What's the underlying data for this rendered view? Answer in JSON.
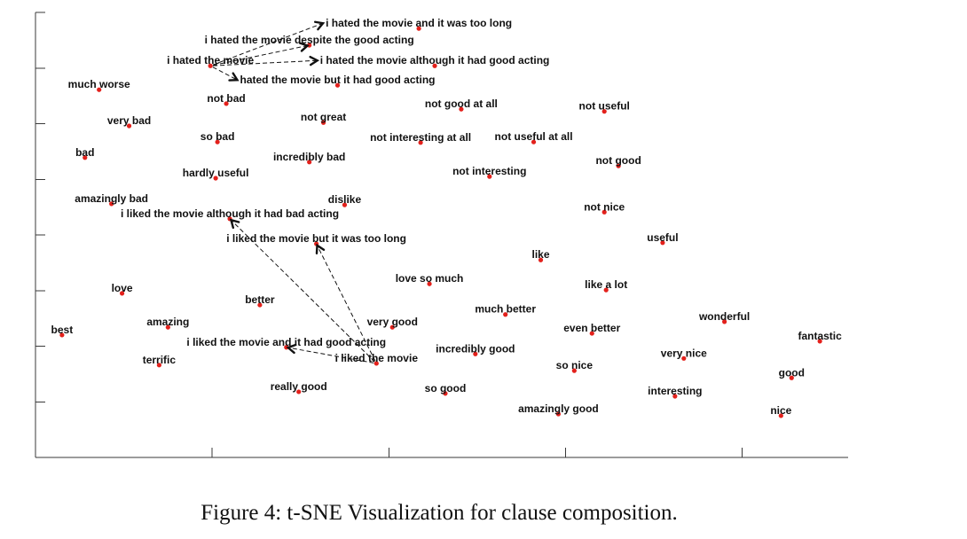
{
  "figure": {
    "caption": "Figure 4: t-SNE Visualization for clause composition."
  },
  "chart_data": {
    "type": "scatter",
    "xlim": [
      0,
      4.6
    ],
    "ylim": [
      0,
      8
    ],
    "xticks": [
      1,
      2,
      3,
      4
    ],
    "yticks": [
      1,
      2,
      3,
      4,
      5,
      6,
      7,
      8
    ],
    "grid": false,
    "point_color": "#e3211c",
    "label_color": "#111111",
    "arrow_color": "#111111",
    "points": [
      {
        "label": "i hated the movie and it was too long",
        "x": 2.17,
        "y": 7.71
      },
      {
        "label": "i hated the movie despite the good acting",
        "x": 1.55,
        "y": 7.41
      },
      {
        "label": "i hated the movie",
        "x": 0.99,
        "y": 7.04
      },
      {
        "label": "i hated the movie although it had good acting",
        "x": 2.26,
        "y": 7.04
      },
      {
        "label": "hated the movie but it had good acting",
        "x": 1.71,
        "y": 6.69
      },
      {
        "label": "much worse",
        "x": 0.36,
        "y": 6.61
      },
      {
        "label": "not bad",
        "x": 1.08,
        "y": 6.36
      },
      {
        "label": "not great",
        "x": 1.63,
        "y": 6.02
      },
      {
        "label": "very bad",
        "x": 0.53,
        "y": 5.96
      },
      {
        "label": "so bad",
        "x": 1.03,
        "y": 5.67
      },
      {
        "label": "not good at all",
        "x": 2.41,
        "y": 6.26
      },
      {
        "label": "not useful",
        "x": 3.22,
        "y": 6.22
      },
      {
        "label": "not interesting at all",
        "x": 2.18,
        "y": 5.66
      },
      {
        "label": "not useful at all",
        "x": 2.82,
        "y": 5.67
      },
      {
        "label": "bad",
        "x": 0.28,
        "y": 5.39
      },
      {
        "label": "incredibly bad",
        "x": 1.55,
        "y": 5.31
      },
      {
        "label": "not good",
        "x": 3.3,
        "y": 5.24
      },
      {
        "label": "hardly useful",
        "x": 1.02,
        "y": 5.02
      },
      {
        "label": "not interesting",
        "x": 2.57,
        "y": 5.05
      },
      {
        "label": "amazingly bad",
        "x": 0.43,
        "y": 4.56
      },
      {
        "label": "dislike",
        "x": 1.75,
        "y": 4.54
      },
      {
        "label": "i liked the movie although it had bad acting",
        "x": 1.1,
        "y": 4.29
      },
      {
        "label": "not nice",
        "x": 3.22,
        "y": 4.41
      },
      {
        "label": "i liked the movie but it was too long",
        "x": 1.59,
        "y": 3.84
      },
      {
        "label": "useful",
        "x": 3.55,
        "y": 3.86
      },
      {
        "label": "like",
        "x": 2.86,
        "y": 3.55
      },
      {
        "label": "love so much",
        "x": 2.23,
        "y": 3.12
      },
      {
        "label": "like a lot",
        "x": 3.23,
        "y": 3.01
      },
      {
        "label": "love",
        "x": 0.49,
        "y": 2.95
      },
      {
        "label": "better",
        "x": 1.27,
        "y": 2.74
      },
      {
        "label": "much better",
        "x": 2.66,
        "y": 2.57
      },
      {
        "label": "very good",
        "x": 2.02,
        "y": 2.34
      },
      {
        "label": "amazing",
        "x": 0.75,
        "y": 2.34
      },
      {
        "label": "best",
        "x": 0.15,
        "y": 2.2
      },
      {
        "label": "wonderful",
        "x": 3.9,
        "y": 2.44
      },
      {
        "label": "even better",
        "x": 3.15,
        "y": 2.23
      },
      {
        "label": "fantastic",
        "x": 4.44,
        "y": 2.09
      },
      {
        "label": "i liked the movie and it had good acting",
        "x": 1.42,
        "y": 1.98
      },
      {
        "label": "incredibly good",
        "x": 2.49,
        "y": 1.86
      },
      {
        "label": "i liked the movie",
        "x": 1.93,
        "y": 1.69
      },
      {
        "label": "terrific",
        "x": 0.7,
        "y": 1.66
      },
      {
        "label": "very nice",
        "x": 3.67,
        "y": 1.78
      },
      {
        "label": "so nice",
        "x": 3.05,
        "y": 1.56
      },
      {
        "label": "good",
        "x": 4.28,
        "y": 1.43
      },
      {
        "label": "really good",
        "x": 1.49,
        "y": 1.18
      },
      {
        "label": "so good",
        "x": 2.32,
        "y": 1.15
      },
      {
        "label": "interesting",
        "x": 3.62,
        "y": 1.1
      },
      {
        "label": "amazingly good",
        "x": 2.96,
        "y": 0.78
      },
      {
        "label": "nice",
        "x": 4.22,
        "y": 0.75
      }
    ],
    "arrows": [
      {
        "from": 2,
        "to": 0
      },
      {
        "from": 2,
        "to": 1
      },
      {
        "from": 2,
        "to": 3
      },
      {
        "from": 2,
        "to": 4
      },
      {
        "from": 39,
        "to": 37
      },
      {
        "from": 39,
        "to": 23
      },
      {
        "from": 39,
        "to": 21
      }
    ]
  }
}
